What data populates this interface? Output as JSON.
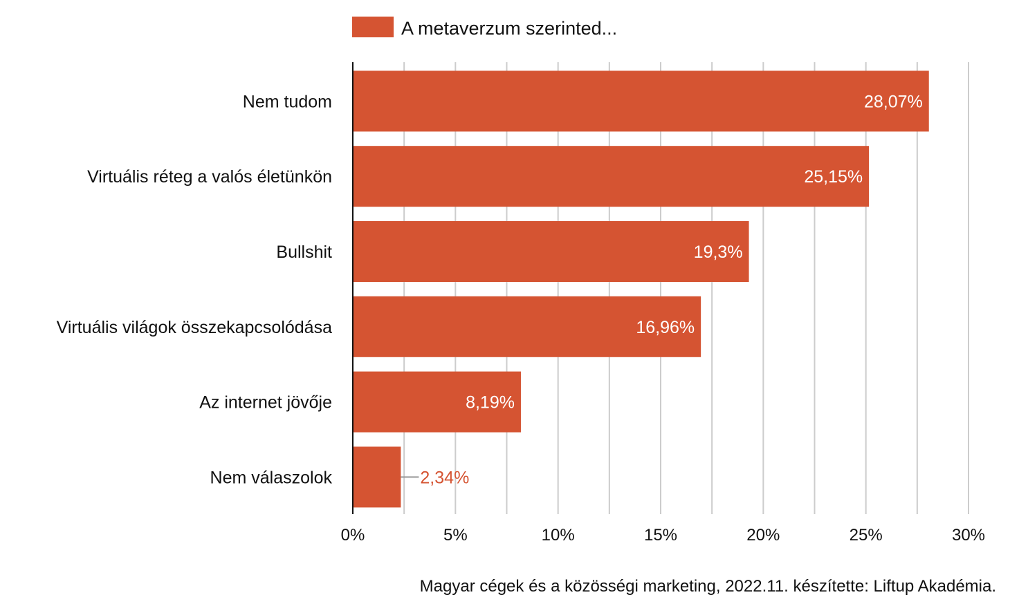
{
  "chart_data": {
    "type": "bar",
    "orientation": "horizontal",
    "legend": "A metaverzum szerinted...",
    "legend_position": "top",
    "categories": [
      "Nem tudom",
      "Virtuális réteg a valós életünkön",
      "Bullshit",
      "Virtuális világok összekapcsolódása",
      "Az internet jövője",
      "Nem válaszolok"
    ],
    "values": [
      28.07,
      25.15,
      19.3,
      16.96,
      8.19,
      2.34
    ],
    "value_labels": [
      "28,07%",
      "25,15%",
      "19,3%",
      "16,96%",
      "8,19%",
      "2,34%"
    ],
    "x_ticks": [
      "0%",
      "5%",
      "10%",
      "15%",
      "20%",
      "25%",
      "30%"
    ],
    "xlim": [
      0,
      30
    ],
    "grid": true,
    "bar_color": "#D55432",
    "caption": "Magyar cégek és a közösségi marketing, 2022.11. készítette:  Liftup Akadémia."
  }
}
